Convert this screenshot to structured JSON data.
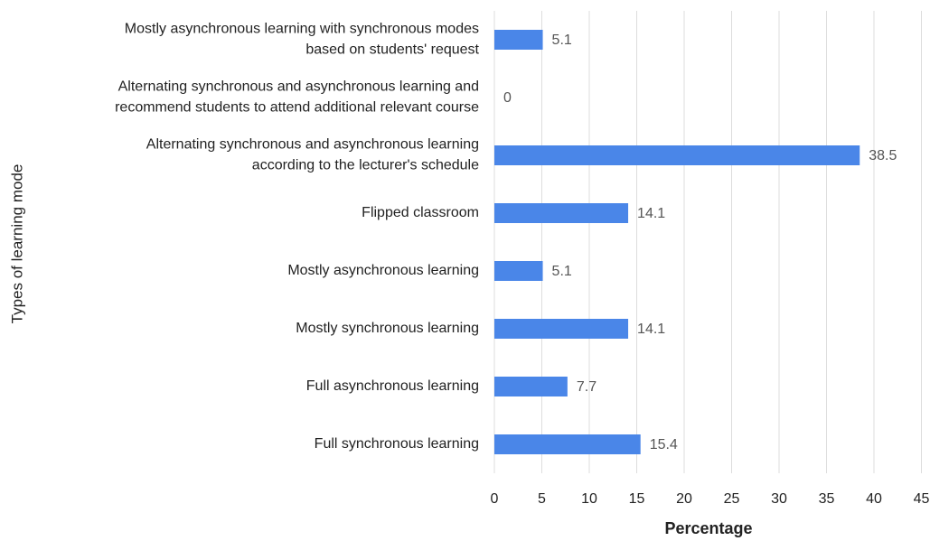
{
  "chart_data": {
    "type": "bar",
    "orientation": "horizontal",
    "xlabel": "Percentage",
    "ylabel": "Types of learning mode",
    "categories": [
      [
        "Mostly asynchronous learning with synchronous modes",
        "based on students' request"
      ],
      [
        "Alternating synchronous and asynchronous learning and",
        "recommend students to attend additional relevant course"
      ],
      [
        "Alternating synchronous and asynchronous learning",
        "according to the lecturer's schedule"
      ],
      [
        "Flipped classroom"
      ],
      [
        "Mostly asynchronous learning"
      ],
      [
        "Mostly synchronous learning"
      ],
      [
        "Full asynchronous learning"
      ],
      [
        "Full synchronous learning"
      ]
    ],
    "values": [
      5.1,
      0,
      38.5,
      14.1,
      5.1,
      14.1,
      7.7,
      15.4
    ],
    "color": "#4a86e8",
    "xlim": [
      0,
      45
    ],
    "xticks": [
      0,
      5,
      10,
      15,
      20,
      25,
      30,
      35,
      40,
      45
    ],
    "grid": true
  }
}
